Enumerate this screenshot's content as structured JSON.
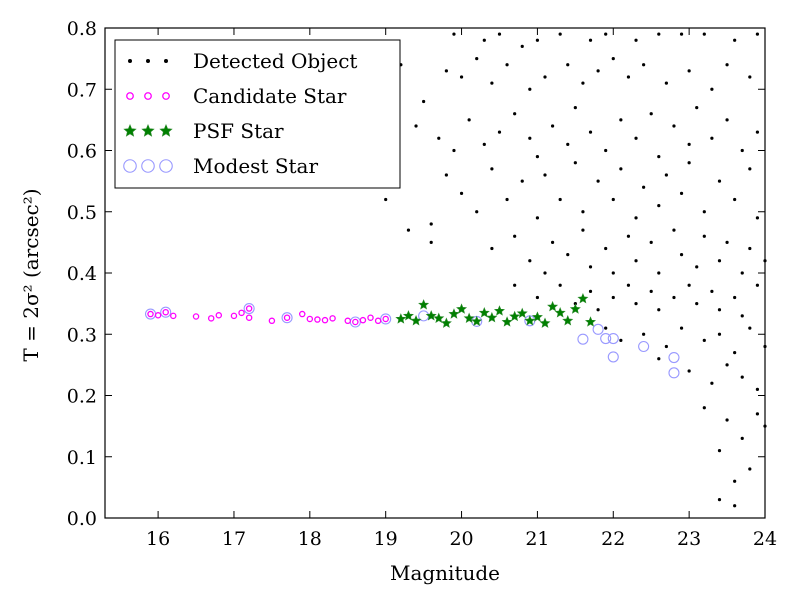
{
  "chart_data": {
    "type": "scatter",
    "xlabel": "Magnitude",
    "ylabel": "T = 2σ² (arcsec²)",
    "xlim": [
      15.3,
      24.0
    ],
    "ylim": [
      0.0,
      0.8
    ],
    "xticks": [
      "16",
      "17",
      "18",
      "19",
      "20",
      "21",
      "22",
      "23",
      "24"
    ],
    "yticks": [
      "0.0",
      "0.1",
      "0.2",
      "0.3",
      "0.4",
      "0.5",
      "0.6",
      "0.7",
      "0.8"
    ],
    "legend_position": "top-left",
    "grid": false,
    "series": [
      {
        "name": "Detected Object",
        "marker": "dot",
        "color": "#000000",
        "points": [
          [
            19.9,
            0.79
          ],
          [
            20.3,
            0.78
          ],
          [
            20.5,
            0.79
          ],
          [
            20.8,
            0.77
          ],
          [
            21.0,
            0.78
          ],
          [
            21.3,
            0.79
          ],
          [
            21.7,
            0.78
          ],
          [
            21.9,
            0.79
          ],
          [
            22.3,
            0.78
          ],
          [
            22.6,
            0.79
          ],
          [
            22.9,
            0.79
          ],
          [
            23.2,
            0.79
          ],
          [
            23.6,
            0.78
          ],
          [
            23.9,
            0.79
          ],
          [
            19.2,
            0.74
          ],
          [
            19.5,
            0.68
          ],
          [
            19.8,
            0.73
          ],
          [
            20.0,
            0.72
          ],
          [
            20.2,
            0.75
          ],
          [
            20.4,
            0.71
          ],
          [
            20.6,
            0.74
          ],
          [
            20.9,
            0.7
          ],
          [
            21.1,
            0.72
          ],
          [
            21.4,
            0.74
          ],
          [
            21.6,
            0.71
          ],
          [
            21.8,
            0.73
          ],
          [
            22.0,
            0.75
          ],
          [
            22.2,
            0.72
          ],
          [
            22.4,
            0.74
          ],
          [
            22.7,
            0.71
          ],
          [
            23.0,
            0.73
          ],
          [
            23.3,
            0.7
          ],
          [
            23.5,
            0.74
          ],
          [
            23.8,
            0.72
          ],
          [
            19.4,
            0.64
          ],
          [
            19.7,
            0.62
          ],
          [
            19.9,
            0.6
          ],
          [
            20.1,
            0.65
          ],
          [
            20.3,
            0.61
          ],
          [
            20.5,
            0.63
          ],
          [
            20.7,
            0.66
          ],
          [
            20.9,
            0.62
          ],
          [
            21.0,
            0.59
          ],
          [
            21.2,
            0.64
          ],
          [
            21.4,
            0.61
          ],
          [
            21.5,
            0.67
          ],
          [
            21.7,
            0.63
          ],
          [
            21.9,
            0.6
          ],
          [
            22.1,
            0.65
          ],
          [
            22.3,
            0.62
          ],
          [
            22.5,
            0.66
          ],
          [
            22.6,
            0.59
          ],
          [
            22.8,
            0.64
          ],
          [
            23.0,
            0.61
          ],
          [
            23.1,
            0.67
          ],
          [
            23.3,
            0.62
          ],
          [
            23.5,
            0.65
          ],
          [
            23.7,
            0.6
          ],
          [
            23.9,
            0.63
          ],
          [
            18.2,
            0.55
          ],
          [
            19.0,
            0.52
          ],
          [
            19.6,
            0.48
          ],
          [
            19.8,
            0.56
          ],
          [
            20.0,
            0.53
          ],
          [
            20.2,
            0.5
          ],
          [
            20.4,
            0.57
          ],
          [
            20.6,
            0.52
          ],
          [
            20.8,
            0.55
          ],
          [
            21.0,
            0.49
          ],
          [
            21.1,
            0.56
          ],
          [
            21.3,
            0.52
          ],
          [
            21.5,
            0.58
          ],
          [
            21.6,
            0.5
          ],
          [
            21.8,
            0.55
          ],
          [
            22.0,
            0.52
          ],
          [
            22.1,
            0.57
          ],
          [
            22.3,
            0.49
          ],
          [
            22.4,
            0.54
          ],
          [
            22.6,
            0.51
          ],
          [
            22.7,
            0.56
          ],
          [
            22.9,
            0.53
          ],
          [
            23.0,
            0.58
          ],
          [
            23.2,
            0.5
          ],
          [
            23.4,
            0.55
          ],
          [
            23.6,
            0.52
          ],
          [
            23.8,
            0.57
          ],
          [
            23.9,
            0.49
          ],
          [
            19.3,
            0.47
          ],
          [
            19.6,
            0.45
          ],
          [
            20.4,
            0.44
          ],
          [
            20.7,
            0.46
          ],
          [
            20.9,
            0.42
          ],
          [
            21.1,
            0.4
          ],
          [
            21.2,
            0.45
          ],
          [
            21.4,
            0.43
          ],
          [
            21.6,
            0.47
          ],
          [
            21.7,
            0.41
          ],
          [
            21.9,
            0.44
          ],
          [
            22.0,
            0.4
          ],
          [
            22.2,
            0.46
          ],
          [
            22.3,
            0.42
          ],
          [
            22.5,
            0.45
          ],
          [
            22.6,
            0.4
          ],
          [
            22.8,
            0.47
          ],
          [
            22.9,
            0.43
          ],
          [
            23.1,
            0.41
          ],
          [
            23.2,
            0.46
          ],
          [
            23.4,
            0.42
          ],
          [
            23.5,
            0.45
          ],
          [
            23.7,
            0.4
          ],
          [
            23.8,
            0.44
          ],
          [
            24.0,
            0.42
          ],
          [
            20.7,
            0.38
          ],
          [
            21.0,
            0.36
          ],
          [
            21.3,
            0.38
          ],
          [
            21.5,
            0.35
          ],
          [
            21.7,
            0.37
          ],
          [
            21.8,
            0.34
          ],
          [
            22.0,
            0.36
          ],
          [
            22.2,
            0.38
          ],
          [
            22.3,
            0.35
          ],
          [
            22.5,
            0.37
          ],
          [
            22.6,
            0.34
          ],
          [
            22.8,
            0.36
          ],
          [
            23.0,
            0.38
          ],
          [
            23.1,
            0.35
          ],
          [
            23.3,
            0.37
          ],
          [
            23.4,
            0.34
          ],
          [
            23.6,
            0.36
          ],
          [
            23.7,
            0.33
          ],
          [
            23.9,
            0.38
          ],
          [
            21.9,
            0.31
          ],
          [
            22.1,
            0.29
          ],
          [
            22.4,
            0.3
          ],
          [
            22.7,
            0.28
          ],
          [
            22.9,
            0.31
          ],
          [
            23.2,
            0.29
          ],
          [
            23.4,
            0.3
          ],
          [
            23.6,
            0.27
          ],
          [
            23.8,
            0.31
          ],
          [
            24.0,
            0.28
          ],
          [
            22.6,
            0.26
          ],
          [
            23.0,
            0.24
          ],
          [
            23.3,
            0.22
          ],
          [
            23.5,
            0.25
          ],
          [
            23.7,
            0.23
          ],
          [
            23.9,
            0.21
          ],
          [
            23.2,
            0.18
          ],
          [
            23.5,
            0.16
          ],
          [
            23.7,
            0.13
          ],
          [
            23.9,
            0.17
          ],
          [
            23.4,
            0.11
          ],
          [
            23.8,
            0.08
          ],
          [
            23.6,
            0.06
          ],
          [
            23.4,
            0.03
          ],
          [
            23.6,
            0.02
          ],
          [
            24.0,
            0.15
          ]
        ]
      },
      {
        "name": "Candidate Star",
        "marker": "small-circle",
        "color": "#ff00ff",
        "points": [
          [
            15.9,
            0.333
          ],
          [
            16.0,
            0.331
          ],
          [
            16.1,
            0.336
          ],
          [
            16.2,
            0.33
          ],
          [
            16.5,
            0.329
          ],
          [
            16.7,
            0.326
          ],
          [
            16.8,
            0.331
          ],
          [
            17.0,
            0.33
          ],
          [
            17.1,
            0.335
          ],
          [
            17.2,
            0.342
          ],
          [
            17.2,
            0.327
          ],
          [
            17.5,
            0.322
          ],
          [
            17.7,
            0.327
          ],
          [
            17.9,
            0.333
          ],
          [
            18.0,
            0.325
          ],
          [
            18.1,
            0.324
          ],
          [
            18.2,
            0.323
          ],
          [
            18.3,
            0.326
          ],
          [
            18.5,
            0.322
          ],
          [
            18.6,
            0.32
          ],
          [
            18.7,
            0.323
          ],
          [
            18.8,
            0.327
          ],
          [
            18.9,
            0.322
          ],
          [
            19.0,
            0.325
          ]
        ]
      },
      {
        "name": "PSF Star",
        "marker": "star",
        "color": "#008000",
        "points": [
          [
            19.2,
            0.325
          ],
          [
            19.3,
            0.33
          ],
          [
            19.4,
            0.322
          ],
          [
            19.5,
            0.348
          ],
          [
            19.6,
            0.33
          ],
          [
            19.7,
            0.326
          ],
          [
            19.8,
            0.318
          ],
          [
            19.9,
            0.333
          ],
          [
            20.0,
            0.341
          ],
          [
            20.1,
            0.326
          ],
          [
            20.2,
            0.321
          ],
          [
            20.3,
            0.335
          ],
          [
            20.4,
            0.327
          ],
          [
            20.5,
            0.338
          ],
          [
            20.6,
            0.32
          ],
          [
            20.7,
            0.329
          ],
          [
            20.8,
            0.334
          ],
          [
            20.9,
            0.322
          ],
          [
            21.0,
            0.328
          ],
          [
            21.1,
            0.318
          ],
          [
            21.2,
            0.345
          ],
          [
            21.3,
            0.335
          ],
          [
            21.4,
            0.322
          ],
          [
            21.5,
            0.341
          ],
          [
            21.6,
            0.358
          ],
          [
            21.7,
            0.32
          ]
        ]
      },
      {
        "name": "Modest Star",
        "marker": "open-circle",
        "color": "#9999ff",
        "points": [
          [
            15.9,
            0.333
          ],
          [
            16.1,
            0.336
          ],
          [
            17.2,
            0.342
          ],
          [
            17.7,
            0.327
          ],
          [
            18.6,
            0.32
          ],
          [
            19.0,
            0.325
          ],
          [
            19.5,
            0.33
          ],
          [
            20.2,
            0.321
          ],
          [
            20.9,
            0.322
          ],
          [
            21.6,
            0.292
          ],
          [
            21.8,
            0.308
          ],
          [
            21.9,
            0.293
          ],
          [
            22.0,
            0.293
          ],
          [
            22.0,
            0.263
          ],
          [
            22.4,
            0.28
          ],
          [
            22.8,
            0.237
          ],
          [
            22.8,
            0.262
          ]
        ]
      }
    ]
  }
}
